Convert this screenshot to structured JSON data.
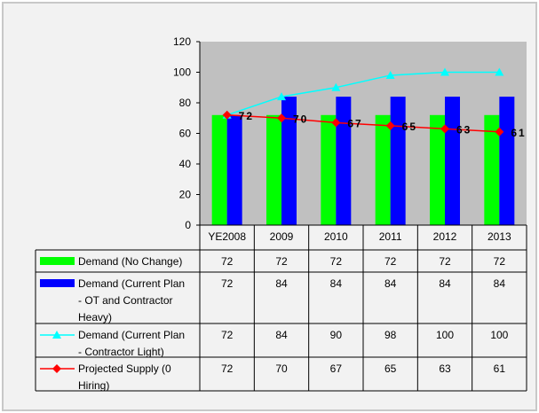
{
  "chart_data": {
    "type": "bar",
    "categories": [
      "YE2008",
      "2009",
      "2010",
      "2011",
      "2012",
      "2013"
    ],
    "ylim": [
      0,
      120
    ],
    "yticks": [
      0,
      20,
      40,
      60,
      80,
      100,
      120
    ],
    "grid": false,
    "plot_background": "#c0c0c0",
    "series": [
      {
        "name": "Demand (No Change)",
        "render": "bar",
        "color": "#00ff00",
        "values": [
          72,
          72,
          72,
          72,
          72,
          72
        ],
        "marker": "",
        "label_lines": [
          "Demand (No Change)"
        ]
      },
      {
        "name": "Demand (Current Plan - OT and Contractor Heavy)",
        "render": "bar",
        "color": "#0000ff",
        "values": [
          72,
          84,
          84,
          84,
          84,
          84
        ],
        "marker": "",
        "label_lines": [
          "Demand (Current Plan",
          "- OT and Contractor",
          "Heavy)"
        ]
      },
      {
        "name": "Demand (Current Plan - Contractor Light)",
        "render": "line",
        "color": "#00ffff",
        "values": [
          72,
          84,
          90,
          98,
          100,
          100
        ],
        "marker": "triangle",
        "label_lines": [
          "Demand (Current Plan",
          "- Contractor Light)"
        ]
      },
      {
        "name": "Projected Supply (0 Hiring)",
        "render": "line",
        "color": "#ff0000",
        "marker_color": "#ff0000",
        "values": [
          72,
          70,
          67,
          65,
          63,
          61
        ],
        "marker": "diamond",
        "show_labels": true,
        "label_lines": [
          "Projected Supply (0",
          "Hiring)"
        ]
      }
    ]
  }
}
